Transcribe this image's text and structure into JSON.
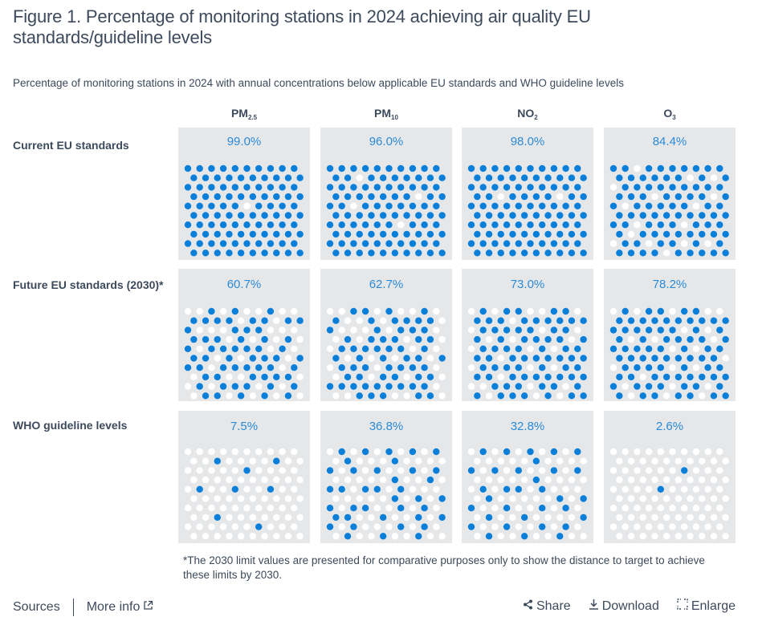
{
  "title": "Figure 1. Percentage of monitoring stations in 2024 achieving air quality EU standards/guideline levels",
  "subtitle": "Percentage of monitoring stations in 2024 with annual concentrations below applicable EU standards and WHO guideline levels",
  "colors": {
    "filled": "#0a7fd9",
    "empty": "#ffffff",
    "panel_bg": "#e6e7e9",
    "pct_text": "#2a8bd8"
  },
  "chart_data": {
    "type": "table",
    "title": "Percentage of monitoring stations in 2024 achieving air quality EU standards/guideline levels",
    "description": "Waffle (dot) charts, 100 dots each; blue dots = stations below threshold",
    "pollutants": [
      {
        "base": "PM",
        "sub": "2.5"
      },
      {
        "base": "PM",
        "sub": "10"
      },
      {
        "base": "NO",
        "sub": "2"
      },
      {
        "base": "O",
        "sub": "3"
      }
    ],
    "categories": [
      "PM2.5",
      "PM10",
      "NO2",
      "O3"
    ],
    "rows": [
      {
        "label": "Current EU standards",
        "values": [
          99.0,
          96.0,
          98.0,
          84.4
        ],
        "labels": [
          "99.0%",
          "96.0%",
          "98.0%",
          "84.4%"
        ],
        "dots": [
          [
            "1111111111",
            "1111111111",
            "1111111111",
            "1111111111",
            "1111101111",
            "1111111111",
            "1111111111",
            "1111111111",
            "1111111111",
            "1111111111"
          ],
          [
            "1111111111",
            "1101111111",
            "1111111111",
            "1111111011",
            "1101111111",
            "1111111111",
            "1111110111",
            "1111111111",
            "1111111111",
            "1111111111"
          ],
          [
            "1111111111",
            "1111111111",
            "1111111111",
            "1101111011",
            "1111111111",
            "1111111111",
            "1111111111",
            "1111111111",
            "1111111111",
            "1111111111"
          ],
          [
            "1101111111",
            "1111110101",
            "0111111111",
            "1110111101",
            "1011111011",
            "1111111111",
            "1101110111",
            "1011111111",
            "0110110101",
            "1111011111"
          ]
        ]
      },
      {
        "label": "Future EU standards (2030)*",
        "values": [
          60.7,
          62.7,
          73.0,
          78.2
        ],
        "labels": [
          "60.7%",
          "62.7%",
          "73.0%",
          "78.2%"
        ],
        "dots": [
          [
            "0010100100",
            "1111011011",
            "1000111000",
            "1110101010",
            "1011111010",
            "1101011101",
            "1101111101",
            "0110011110",
            "0101110101",
            "0110101010"
          ],
          [
            "0011010010",
            "1001011110",
            "1000101110",
            "0101110110",
            "0111111010",
            "1010101101",
            "0111011110",
            "0110110110",
            "1111111110",
            "0011100110"
          ],
          [
            "0101100110",
            "1110111111",
            "0111110110",
            "1010111101",
            "0111101011",
            "1101111111",
            "0111101011",
            "1101111111",
            "0011101101",
            "1011101011"
          ],
          [
            "0101101100",
            "1111111111",
            "1111110101",
            "1010111101",
            "1111101011",
            "1111111110",
            "0111101011",
            "1101111111",
            "1011101101",
            "1011011011"
          ]
        ]
      },
      {
        "label": "WHO guideline levels",
        "values": [
          7.5,
          36.8,
          32.8,
          2.6
        ],
        "labels": [
          "7.5%",
          "36.8%",
          "32.8%",
          "2.6%"
        ],
        "dots": [
          [
            "0000000000",
            "0010000100",
            "0000010000",
            "0000000000",
            "0100100100",
            "0000000000",
            "0000000000",
            "0010000000",
            "0000001000",
            "0000000000"
          ],
          [
            "0101010101",
            "0100010000",
            "1010100101",
            "0000010010",
            "1101101000",
            "0000010101",
            "1011001010",
            "1100100101",
            "1010001010",
            "0100100100"
          ],
          [
            "0101010101",
            "0000010000",
            "1010100101",
            "0000010000",
            "0101101000",
            "0100000101",
            "1001001010",
            "0100100001",
            "1001001010",
            "0100100100"
          ],
          [
            "0000000000",
            "0000000000",
            "0000001000",
            "0000000000",
            "0000100000",
            "0000000000",
            "0000000000",
            "0000000000",
            "0000000000",
            "0000000000"
          ]
        ]
      }
    ]
  },
  "footnote": "*The 2030 limit values are presented for comparative purposes only to show the distance to target to achieve these limits by 2030.",
  "footer": {
    "sources_label": "Sources",
    "more_info_label": "More info",
    "share_label": "Share",
    "download_label": "Download",
    "enlarge_label": "Enlarge"
  }
}
